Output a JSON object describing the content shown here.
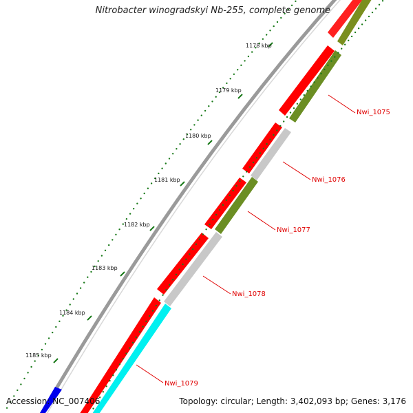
{
  "title": "Nitrobacter winogradskyi Nb-255, complete genome",
  "accession": "Accession: NC_007406",
  "summary": "Topology: circular; Length: 3,402,093 bp; Genes: 3,176",
  "ticks": [
    "1178 kbp",
    "1179 kbp",
    "1180 kbp",
    "1181 kbp",
    "1182 kbp",
    "1183 kbp",
    "1184 kbp",
    "1185 kbp"
  ],
  "genes": [
    "Nwi_1075",
    "Nwi_1076",
    "Nwi_1077",
    "Nwi_1078",
    "Nwi_1079"
  ],
  "colors": {
    "backbone": "#8c8c8c",
    "forward": "#ff0000",
    "olive": "#6b8e23",
    "grey": "#c8c8c8",
    "cyan": "#00ffff",
    "blue": "#0000ee",
    "tick": "#1a7a1a",
    "label": "#e00000"
  }
}
